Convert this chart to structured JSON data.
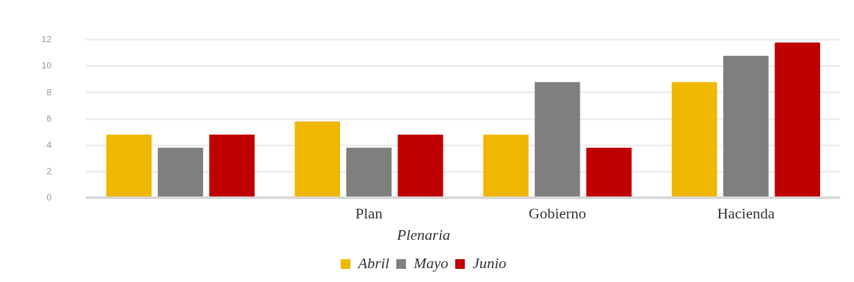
{
  "chart_data": {
    "type": "bar",
    "legend_title": "Plenaria",
    "categories": [
      null,
      "Plan",
      "Gobierno",
      "Hacienda"
    ],
    "series": [
      {
        "name": "Abril",
        "color": "#efb700",
        "values": [
          4.8,
          5.8,
          4.8,
          8.8
        ]
      },
      {
        "name": "Mayo",
        "color": "#7f7f7f",
        "values": [
          3.8,
          3.8,
          8.8,
          10.8
        ]
      },
      {
        "name": "Junio",
        "color": "#c00000",
        "values": [
          4.8,
          4.8,
          3.8,
          11.8
        ]
      }
    ],
    "ylim": [
      0,
      12
    ],
    "yticks": [
      0,
      2,
      4,
      6,
      8,
      10,
      12
    ],
    "grid": "y",
    "legend": "bottom"
  }
}
